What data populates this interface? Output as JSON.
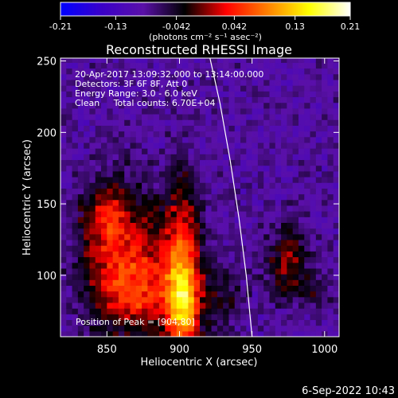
{
  "chart_data": {
    "type": "heatmap",
    "title": "Reconstructed RHESSI Image",
    "xlabel": "Heliocentric X (arcsec)",
    "ylabel": "Heliocentric Y (arcsec)",
    "xlim": [
      818,
      1010
    ],
    "ylim": [
      57,
      252
    ],
    "x_ticks": [
      850,
      900,
      950,
      1000
    ],
    "y_ticks": [
      100,
      150,
      200,
      250
    ],
    "colorbar": {
      "min": -0.21,
      "max": 0.21,
      "tick_values": [
        -0.21,
        -0.13,
        -0.042,
        0.042,
        0.13,
        0.21
      ],
      "tick_labels": [
        "-0.21",
        "-0.13",
        "-0.042",
        "0.042",
        "0.13",
        "0.21"
      ],
      "unit_label": "(photons cm⁻² s⁻¹ asec⁻²)",
      "colors": [
        "#0000ff",
        "#3a00c8",
        "#5a10a8",
        "#000000",
        "#ff0000",
        "#ff8000",
        "#ffff00",
        "#ffffff"
      ]
    },
    "annotations": [
      "20-Apr-2017 13:09:32.000 to 13:14:00.000",
      "Detectors: 3F 6F 8F, Att 0",
      "Energy Range: 3.0 - 6.0 keV",
      "Clean     Total counts: 6.70E+04"
    ],
    "peak_label": "Position of Peak = [904,80]",
    "peak": [
      904,
      80
    ],
    "limb_curve": [
      [
        921,
        252
      ],
      [
        928,
        220
      ],
      [
        935,
        180
      ],
      [
        941,
        140
      ],
      [
        946,
        100
      ],
      [
        950,
        57
      ]
    ],
    "blobs": [
      {
        "x": 902,
        "y": 95,
        "sx": 9,
        "sy": 45,
        "a": 0.17
      },
      {
        "x": 904,
        "y": 80,
        "sx": 6,
        "sy": 14,
        "a": 0.06
      },
      {
        "x": 860,
        "y": 112,
        "sx": 20,
        "sy": 34,
        "a": 0.13
      },
      {
        "x": 848,
        "y": 145,
        "sx": 10,
        "sy": 14,
        "a": 0.06
      },
      {
        "x": 880,
        "y": 85,
        "sx": 18,
        "sy": 18,
        "a": 0.07
      },
      {
        "x": 930,
        "y": 85,
        "sx": 10,
        "sy": 20,
        "a": 0.05
      },
      {
        "x": 975,
        "y": 110,
        "sx": 10,
        "sy": 18,
        "a": 0.09
      },
      {
        "x": 995,
        "y": 90,
        "sx": 8,
        "sy": 10,
        "a": 0.04
      }
    ],
    "background_level": -0.09
  },
  "date_stamp": "6-Sep-2022 10:43"
}
